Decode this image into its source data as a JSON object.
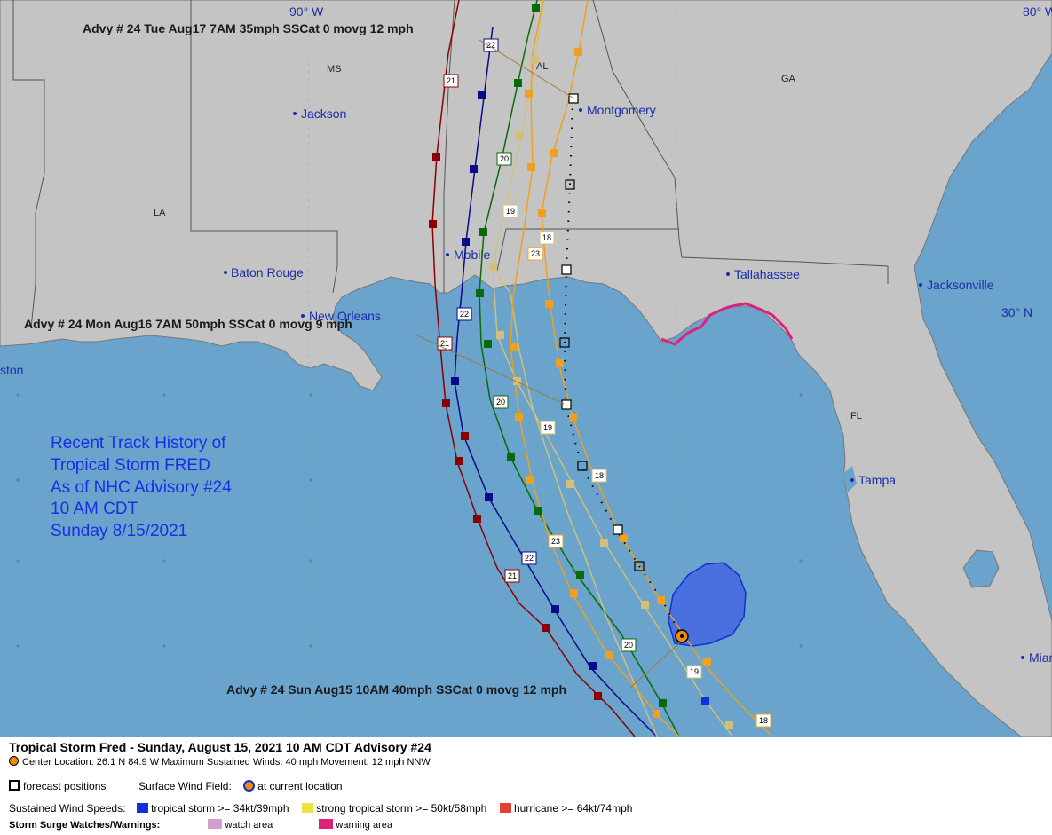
{
  "title_block": {
    "lines": [
      "Recent Track History of",
      "Tropical Storm FRED",
      "As of NHC Advisory #24",
      "10 AM CDT",
      "Sunday 8/15/2021"
    ]
  },
  "coordinates": {
    "lon_90": "90° W",
    "lon_80": "80° W",
    "lat_30": "30° N"
  },
  "cities": [
    {
      "name": "Jackson"
    },
    {
      "name": "Montgomery"
    },
    {
      "name": "Baton Rouge"
    },
    {
      "name": "Mobile"
    },
    {
      "name": "Tallahassee"
    },
    {
      "name": "Jacksonville"
    },
    {
      "name": "New Orleans"
    },
    {
      "name": "Tampa"
    },
    {
      "name": "ston"
    },
    {
      "name": "Miam"
    }
  ],
  "states": [
    "MS",
    "AL",
    "GA",
    "LA",
    "FL"
  ],
  "advisory_labels": [
    "Advy # 24 Tue Aug17 7AM  35mph SSCat 0 movg 12 mph",
    "Advy # 24 Mon Aug16 7AM  50mph SSCat 0 movg 9 mph",
    "Advy # 24 Sun Aug15 10AM  40mph SSCat 0 movg 12 mph"
  ],
  "track_day_labels": [
    "22",
    "21",
    "20",
    "19",
    "18",
    "23",
    "22",
    "21",
    "20",
    "19",
    "18",
    "23",
    "22",
    "21",
    "20",
    "19",
    "18"
  ],
  "colors": {
    "water": "#6aa3cb",
    "land": "#c4c4c4",
    "track_darkred": "#8b0000",
    "track_navy": "#0a0a8a",
    "track_green": "#0a6a0a",
    "track_tan": "#d2c07a",
    "track_orange": "#f0a020",
    "wind_field": "#4a70e0",
    "warning": "#e0207a"
  },
  "legend": {
    "title": "Tropical Storm Fred  -  Sunday, August 15, 2021  10 AM CDT   Advisory #24",
    "center_line": "Center Location: 26.1 N  84.9 W   Maximum Sustained Winds: 40 mph  Movement: 12 mph NNW",
    "forecast_positions": "forecast positions",
    "surface_wind_field": "Surface Wind Field:",
    "at_current_location": "at current location",
    "sustained_label": "Sustained Wind Speeds:",
    "ts_label": "tropical storm >= 34kt/39mph",
    "sts_label": "strong tropical storm >= 50kt/58mph",
    "hu_label": "hurricane >= 64kt/74mph",
    "surge_label": "Storm Surge Watches/Warnings:",
    "watch_label": "watch area",
    "warning_label": "warning area"
  },
  "legend_colors": {
    "ts": "#1030e0",
    "sts": "#f0e040",
    "hu": "#e04030",
    "watch": "#d0a0d0",
    "warning": "#e0207a"
  }
}
